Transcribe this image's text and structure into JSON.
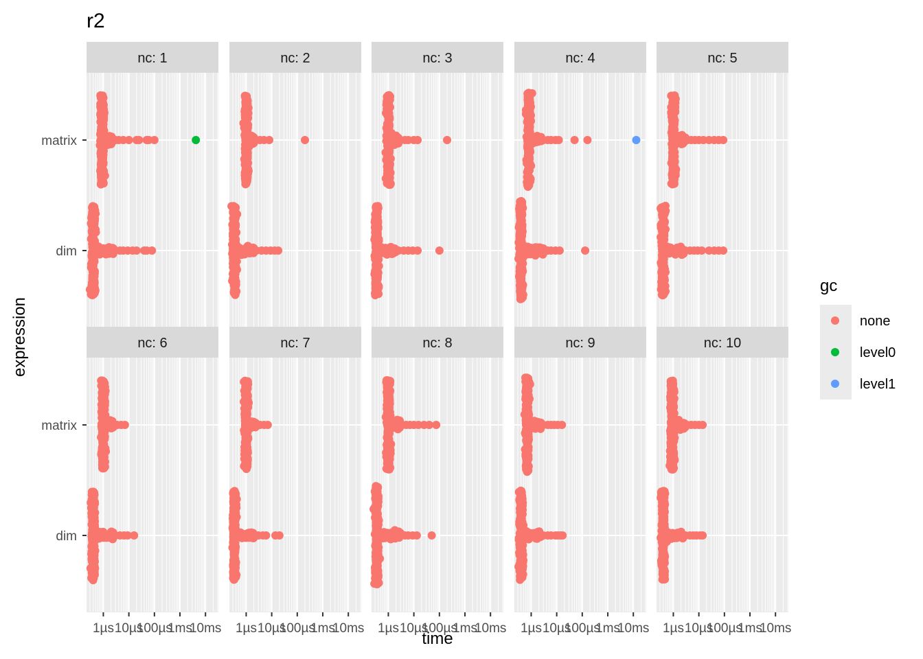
{
  "chart_data": {
    "type": "scatter",
    "title": "r2",
    "xlabel": "time",
    "ylabel": "expression",
    "x_scale": "log10",
    "x_unit": "seconds",
    "xlim": [
      2.2e-07,
      0.032
    ],
    "x_ticks": [
      {
        "value": 1e-06,
        "label": "1µs"
      },
      {
        "value": 1e-05,
        "label": "10µs"
      },
      {
        "value": 0.0001,
        "label": "100µs"
      },
      {
        "value": 0.001,
        "label": "1ms"
      },
      {
        "value": 0.01,
        "label": "10ms"
      }
    ],
    "categories": [
      "matrix",
      "dim"
    ],
    "grid": true,
    "legend": {
      "title": "gc",
      "position": "right",
      "entries": [
        {
          "name": "none",
          "color": "#F8766D"
        },
        {
          "name": "level0",
          "color": "#00BA38"
        },
        {
          "name": "level1",
          "color": "#619CFF"
        }
      ]
    },
    "facets": [
      {
        "label": "nc: 1",
        "series": {
          "matrix": {
            "center": 9e-07,
            "spread": 0.9,
            "core_max": 2.2e-06,
            "tail_max": 0.0001,
            "none": [
              1.5e-06,
              2e-06,
              3e-06,
              4e-06,
              6e-06,
              1e-05,
              2e-05,
              2.5e-05,
              5e-05,
              6e-05,
              0.0001
            ],
            "level0": [
              0.0042
            ],
            "level1": []
          },
          "dim": {
            "center": 4e-07,
            "spread": 0.9,
            "core_max": 2.5e-06,
            "tail_max": 8e-05,
            "none": [
              3e-06,
              4.5e-06,
              6e-06,
              9e-06,
              1.4e-05,
              2e-05,
              4e-05,
              5e-05,
              8e-05
            ],
            "level0": [],
            "level1": []
          }
        }
      },
      {
        "label": "nc: 2",
        "series": {
          "matrix": {
            "center": 1e-06,
            "spread": 0.9,
            "core_max": 2.2e-06,
            "tail_max": 0.0002,
            "none": [
              1.8e-06,
              2.5e-06,
              3.5e-06,
              5e-06,
              8e-06,
              0.0002
            ],
            "level0": [],
            "level1": []
          },
          "dim": {
            "center": 3.5e-07,
            "spread": 0.9,
            "core_max": 2e-06,
            "tail_max": 1.8e-05,
            "none": [
              2.5e-06,
              4e-06,
              6e-06,
              9e-06,
              1.3e-05,
              1.8e-05
            ],
            "level0": [],
            "level1": []
          }
        }
      },
      {
        "label": "nc: 3",
        "series": {
          "matrix": {
            "center": 1e-06,
            "spread": 0.9,
            "core_max": 2.5e-06,
            "tail_max": 0.0002,
            "none": [
              2e-06,
              3e-06,
              4.5e-06,
              6e-06,
              1e-05,
              1.4e-05,
              0.0002
            ],
            "level0": [],
            "level1": []
          },
          "dim": {
            "center": 3.5e-07,
            "spread": 0.9,
            "core_max": 2e-06,
            "tail_max": 0.0001,
            "none": [
              2.5e-06,
              4e-06,
              6e-06,
              9e-06,
              1.4e-05,
              0.0001
            ],
            "level0": [],
            "level1": []
          }
        }
      },
      {
        "label": "nc: 4",
        "series": {
          "matrix": {
            "center": 8e-07,
            "spread": 0.95,
            "core_max": 2.5e-06,
            "tail_max": 0.00016,
            "none": [
              2e-06,
              3e-06,
              4.5e-06,
              6e-06,
              9e-06,
              1.2e-05,
              5e-05,
              0.00016
            ],
            "level0": [],
            "level1": [
              0.013
            ]
          },
          "dim": {
            "center": 4e-07,
            "spread": 1.0,
            "core_max": 3e-06,
            "tail_max": 0.00013,
            "none": [
              3e-06,
              4.5e-06,
              6e-06,
              9e-06,
              1.3e-05,
              0.00013
            ],
            "level0": [],
            "level1": []
          }
        }
      },
      {
        "label": "nc: 5",
        "series": {
          "matrix": {
            "center": 1e-06,
            "spread": 0.9,
            "core_max": 3e-06,
            "tail_max": 9e-05,
            "none": [
              2.5e-06,
              3.5e-06,
              5e-06,
              7e-06,
              1e-05,
              1.5e-05,
              2.5e-05,
              4e-05,
              6e-05,
              9e-05
            ],
            "level0": [],
            "level1": []
          },
          "dim": {
            "center": 4e-07,
            "spread": 0.9,
            "core_max": 2.5e-06,
            "tail_max": 9e-05,
            "none": [
              3e-06,
              4.5e-06,
              6.5e-06,
              9e-06,
              1.3e-05,
              2.5e-05,
              4e-05,
              6e-05,
              9e-05
            ],
            "level0": [],
            "level1": []
          }
        }
      },
      {
        "label": "nc: 6",
        "series": {
          "matrix": {
            "center": 1e-06,
            "spread": 0.9,
            "core_max": 2.5e-06,
            "tail_max": 7e-06,
            "none": [
              2.5e-06,
              3.5e-06,
              5e-06,
              7e-06
            ],
            "level0": [],
            "level1": []
          },
          "dim": {
            "center": 4e-07,
            "spread": 0.9,
            "core_max": 2.5e-06,
            "tail_max": 1.6e-05,
            "none": [
              3e-06,
              4.5e-06,
              6.5e-06,
              9e-06,
              1.6e-05
            ],
            "level0": [],
            "level1": []
          }
        }
      },
      {
        "label": "nc: 7",
        "series": {
          "matrix": {
            "center": 1e-06,
            "spread": 0.9,
            "core_max": 2.5e-06,
            "tail_max": 7e-06,
            "none": [
              2.5e-06,
              3.5e-06,
              5e-06,
              7e-06
            ],
            "level0": [],
            "level1": []
          },
          "dim": {
            "center": 3.5e-07,
            "spread": 0.9,
            "core_max": 2e-06,
            "tail_max": 2e-05,
            "none": [
              3e-06,
              4.5e-06,
              6e-06,
              1.4e-05,
              2e-05
            ],
            "level0": [],
            "level1": []
          }
        }
      },
      {
        "label": "nc: 8",
        "series": {
          "matrix": {
            "center": 1e-06,
            "spread": 0.9,
            "core_max": 3e-06,
            "tail_max": 7.5e-05,
            "none": [
              2.5e-06,
              3.5e-06,
              5e-06,
              7e-06,
              1e-05,
              1.5e-05,
              2.5e-05,
              4e-05,
              7.5e-05
            ],
            "level0": [],
            "level1": []
          },
          "dim": {
            "center": 3.5e-07,
            "spread": 1.0,
            "core_max": 3e-06,
            "tail_max": 5e-05,
            "none": [
              3e-06,
              4.5e-06,
              6e-06,
              9e-06,
              1.3e-05,
              5e-05
            ],
            "level0": [],
            "level1": []
          }
        }
      },
      {
        "label": "nc: 9",
        "series": {
          "matrix": {
            "center": 7e-07,
            "spread": 0.95,
            "core_max": 2.5e-06,
            "tail_max": 1.6e-05,
            "none": [
              2e-06,
              3e-06,
              4.5e-06,
              6e-06,
              8e-06,
              1.1e-05,
              1.6e-05
            ],
            "level0": [],
            "level1": []
          },
          "dim": {
            "center": 4e-07,
            "spread": 0.9,
            "core_max": 2.5e-06,
            "tail_max": 1.7e-05,
            "none": [
              3e-06,
              4.5e-06,
              6e-06,
              9e-06,
              1.1e-05,
              1.4e-05,
              1.7e-05
            ],
            "level0": [],
            "level1": []
          }
        }
      },
      {
        "label": "nc: 10",
        "series": {
          "matrix": {
            "center": 9e-07,
            "spread": 0.9,
            "core_max": 3e-06,
            "tail_max": 1.4e-05,
            "none": [
              2.5e-06,
              3.5e-06,
              5e-06,
              7e-06,
              1e-05,
              1.4e-05
            ],
            "level0": [],
            "level1": []
          },
          "dim": {
            "center": 4e-07,
            "spread": 0.9,
            "core_max": 2.5e-06,
            "tail_max": 1.4e-05,
            "none": [
              3e-06,
              4.5e-06,
              6e-06,
              8e-06,
              1.1e-05,
              1.4e-05
            ],
            "level0": [],
            "level1": []
          }
        }
      }
    ]
  }
}
